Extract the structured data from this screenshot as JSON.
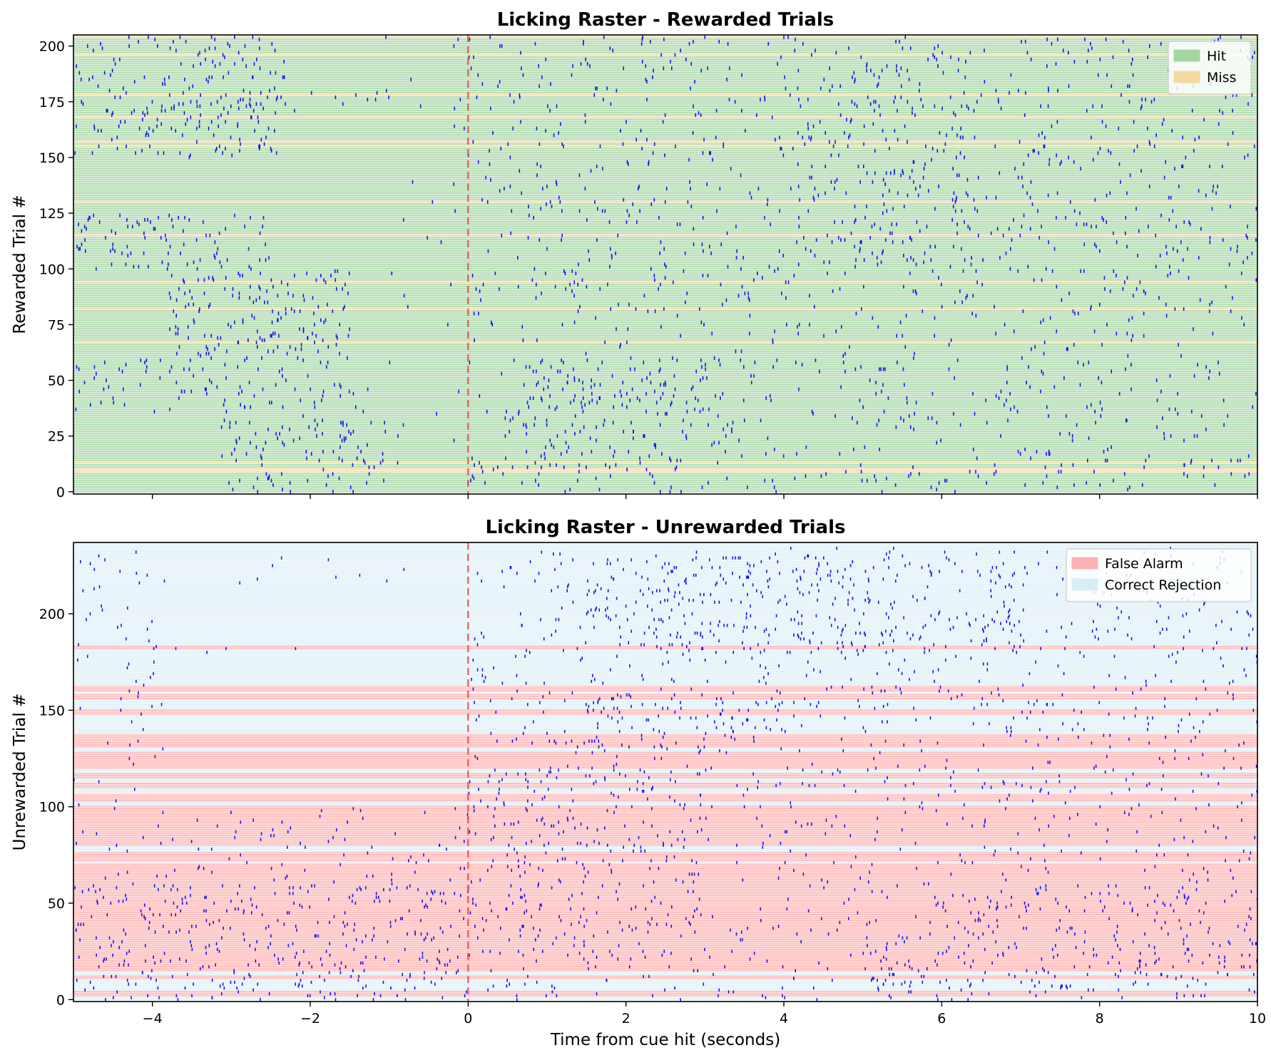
{
  "figure": {
    "xlabel": "Time from cue hit (seconds)"
  },
  "chart_data": [
    {
      "type": "scatter",
      "subtype": "event-raster",
      "title": "Licking Raster - Rewarded Trials",
      "xlabel": "",
      "ylabel": "Rewarded Trial #",
      "xlim": [
        -5,
        10
      ],
      "ylim": [
        -1,
        205
      ],
      "xticks": [
        -4,
        -2,
        0,
        2,
        4,
        6,
        8,
        10
      ],
      "xticks_labeled": false,
      "yticks": [
        0,
        25,
        50,
        75,
        100,
        125,
        150,
        175,
        200
      ],
      "cue_line": {
        "x": 0,
        "color": "#e8534f",
        "style": "dashed"
      },
      "legend": {
        "placement": "top-right",
        "entries": [
          {
            "label": "Hit",
            "color": "#9bd29b"
          },
          {
            "label": "Miss",
            "color": "#f5d79a"
          }
        ]
      },
      "n_trials": 205,
      "outcome_bands": {
        "default": "Hit",
        "Miss_trials": [
          9,
          10,
          13,
          67,
          82,
          94,
          115,
          130,
          155,
          157,
          168,
          178,
          196,
          204
        ]
      },
      "lick_color": "#1515e6",
      "lick_clusters": [
        {
          "trials": [
            150,
            205
          ],
          "t_range": [
            -5.0,
            -2.3
          ],
          "rate": 3.0
        },
        {
          "trials": [
            170,
            180
          ],
          "t_range": [
            -2.3,
            -0.6
          ],
          "rate": 1.2
        },
        {
          "trials": [
            100,
            125
          ],
          "t_range": [
            -5.0,
            -2.5
          ],
          "rate": 2.6
        },
        {
          "trials": [
            60,
            100
          ],
          "t_range": [
            -3.8,
            -1.5
          ],
          "rate": 3.2
        },
        {
          "trials": [
            35,
            60
          ],
          "t_range": [
            -5.0,
            -1.4
          ],
          "rate": 2.0
        },
        {
          "trials": [
            0,
            35
          ],
          "t_range": [
            -3.2,
            -1.0
          ],
          "rate": 2.6
        },
        {
          "trials": [
            0,
            205
          ],
          "t_range": [
            -1.5,
            0.0
          ],
          "rate": 0.25
        },
        {
          "trials": [
            0,
            205
          ],
          "t_range": [
            0.0,
            10.0
          ],
          "rate": 1.15
        },
        {
          "trials": [
            10,
            60
          ],
          "t_range": [
            0.7,
            3.3
          ],
          "rate": 1.4
        },
        {
          "trials": [
            100,
            205
          ],
          "t_range": [
            4.0,
            6.5
          ],
          "rate": 1.0
        }
      ]
    },
    {
      "type": "scatter",
      "subtype": "event-raster",
      "title": "Licking Raster - Unrewarded Trials",
      "xlabel": "Time from cue hit (seconds)",
      "ylabel": "Unrewarded Trial #",
      "xlim": [
        -5,
        10
      ],
      "ylim": [
        -1,
        237
      ],
      "xticks": [
        -4,
        -2,
        0,
        2,
        4,
        6,
        8,
        10
      ],
      "yticks": [
        0,
        50,
        100,
        150,
        200
      ],
      "cue_line": {
        "x": 0,
        "color": "#e8534f",
        "style": "dashed"
      },
      "legend": {
        "placement": "top-right",
        "entries": [
          {
            "label": "False Alarm",
            "color": "#ffaaaa"
          },
          {
            "label": "Correct Rejection",
            "color": "#d6ecf5"
          }
        ]
      },
      "n_trials": 237,
      "outcome_bands": {
        "default": "Correct Rejection",
        "False_Alarm_ranges": [
          [
            2,
            4
          ],
          [
            11,
            12
          ],
          [
            15,
            70
          ],
          [
            72,
            76
          ],
          [
            80,
            100
          ],
          [
            103,
            106
          ],
          [
            110,
            112
          ],
          [
            115,
            117
          ],
          [
            120,
            128
          ],
          [
            131,
            137
          ],
          [
            148,
            150
          ],
          [
            156,
            158
          ],
          [
            160,
            162
          ],
          [
            182,
            183
          ]
        ]
      },
      "lick_color": "#1515e6",
      "lick_clusters": [
        {
          "trials": [
            0,
            100
          ],
          "t_range": [
            -5.0,
            0.0
          ],
          "rate": 0.9
        },
        {
          "trials": [
            0,
            60
          ],
          "t_range": [
            -5.0,
            0.0
          ],
          "rate": 1.4
        },
        {
          "trials": [
            100,
            235
          ],
          "t_range": [
            -5.0,
            -3.8
          ],
          "rate": 0.6
        },
        {
          "trials": [
            215,
            230
          ],
          "t_range": [
            -3.0,
            -0.8
          ],
          "rate": 0.5
        },
        {
          "trials": [
            180,
            183
          ],
          "t_range": [
            -4.2,
            -1.6
          ],
          "rate": 0.7
        },
        {
          "trials": [
            0,
            235
          ],
          "t_range": [
            0.0,
            10.0
          ],
          "rate": 1.0
        },
        {
          "trials": [
            180,
            230
          ],
          "t_range": [
            1.5,
            7.0
          ],
          "rate": 1.6
        },
        {
          "trials": [
            130,
            160
          ],
          "t_range": [
            1.5,
            4.0
          ],
          "rate": 1.8
        },
        {
          "trials": [
            20,
            120
          ],
          "t_range": [
            0.0,
            3.0
          ],
          "rate": 0.9
        },
        {
          "trials": [
            0,
            60
          ],
          "t_range": [
            5.0,
            10.0
          ],
          "rate": 1.0
        }
      ]
    }
  ]
}
